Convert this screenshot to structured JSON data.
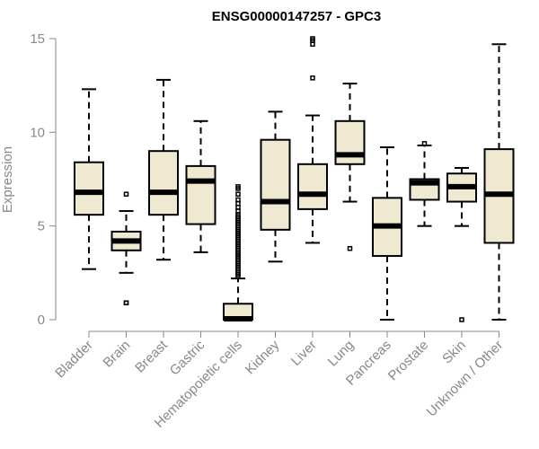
{
  "chart_data": {
    "type": "box",
    "title": "ENSG00000147257 - GPC3",
    "ylabel": "Expression",
    "xlabel": "",
    "ylim": [
      0,
      15
    ],
    "yticks": [
      0,
      5,
      10,
      15
    ],
    "box_fill": "#efe9d2",
    "grid": false,
    "categories": [
      "Bladder",
      "Brain",
      "Breast",
      "Gastric",
      "Hematopoietic cells",
      "Kidney",
      "Liver",
      "Lung",
      "Pancreas",
      "Prostate",
      "Skin",
      "Unknown / Other"
    ],
    "boxes": [
      {
        "min": 2.7,
        "q1": 5.6,
        "median": 6.8,
        "q3": 8.4,
        "max": 12.3,
        "outliers": []
      },
      {
        "min": 2.5,
        "q1": 3.7,
        "median": 4.2,
        "q3": 4.7,
        "max": 5.8,
        "outliers": [
          0.9,
          0.9,
          6.7
        ]
      },
      {
        "min": 3.2,
        "q1": 5.6,
        "median": 6.8,
        "q3": 9.0,
        "max": 12.8,
        "outliers": []
      },
      {
        "min": 3.6,
        "q1": 5.1,
        "median": 7.4,
        "q3": 8.2,
        "max": 10.6,
        "outliers": []
      },
      {
        "min": 0.0,
        "q1": 0.0,
        "median": 0.05,
        "q3": 0.85,
        "max": 2.2,
        "outliers": [
          2.3,
          2.4,
          2.5,
          2.6,
          2.7,
          2.8,
          2.9,
          3.0,
          3.1,
          3.2,
          3.3,
          3.4,
          3.5,
          3.6,
          3.7,
          3.8,
          3.9,
          4.0,
          4.1,
          4.2,
          4.3,
          4.4,
          4.5,
          4.6,
          4.7,
          4.8,
          4.9,
          5.0,
          5.1,
          5.2,
          5.3,
          5.4,
          5.5,
          5.6,
          5.8,
          6.0,
          6.2,
          6.4,
          6.7,
          7.0,
          7.1
        ]
      },
      {
        "min": 3.1,
        "q1": 4.8,
        "median": 6.3,
        "q3": 9.6,
        "max": 11.1,
        "outliers": []
      },
      {
        "min": 4.1,
        "q1": 5.9,
        "median": 6.7,
        "q3": 8.3,
        "max": 10.9,
        "outliers": [
          12.9,
          14.7,
          14.9,
          15.0
        ]
      },
      {
        "min": 6.3,
        "q1": 8.3,
        "median": 8.8,
        "q3": 10.6,
        "max": 12.6,
        "outliers": [
          3.8
        ]
      },
      {
        "min": 0.0,
        "q1": 3.4,
        "median": 5.0,
        "q3": 6.5,
        "max": 9.2,
        "outliers": []
      },
      {
        "min": 5.0,
        "q1": 6.4,
        "median": 7.3,
        "q3": 7.5,
        "max": 9.3,
        "outliers": [
          9.4
        ]
      },
      {
        "min": 5.0,
        "q1": 6.3,
        "median": 7.1,
        "q3": 7.8,
        "max": 8.1,
        "outliers": [
          0.0
        ]
      },
      {
        "min": 0.0,
        "q1": 4.1,
        "median": 6.7,
        "q3": 9.1,
        "max": 14.7,
        "outliers": []
      }
    ]
  }
}
